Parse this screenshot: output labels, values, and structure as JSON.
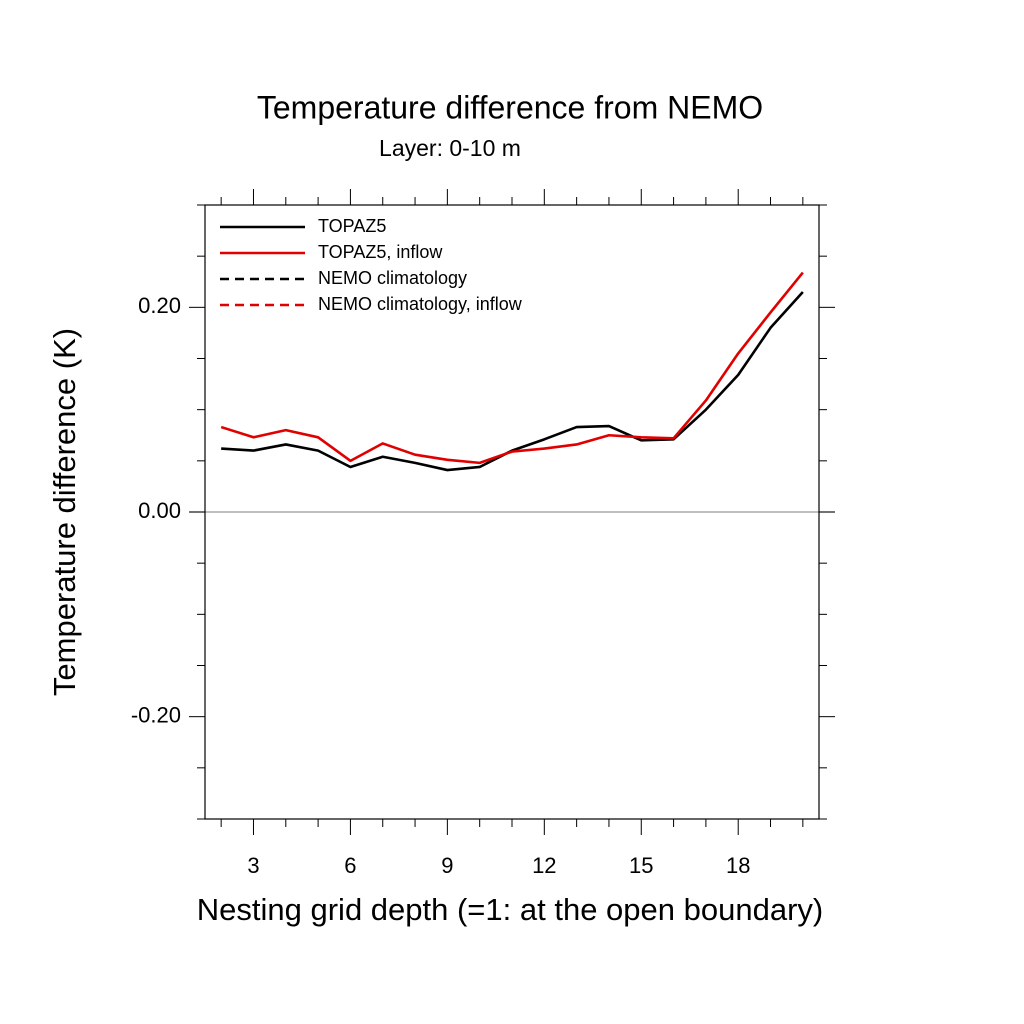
{
  "chart_data": {
    "type": "line",
    "title": "Temperature difference from NEMO",
    "subtitle": "Layer: 0-10 m",
    "x_label": "Nesting grid depth (=1: at the open boundary)",
    "y_label": "Temperature difference (K)",
    "x": [
      2,
      3,
      4,
      5,
      6,
      7,
      8,
      9,
      10,
      11,
      12,
      13,
      14,
      15,
      16,
      17,
      18,
      19,
      20
    ],
    "series": [
      {
        "name": "TOPAZ5",
        "color": "#000000",
        "dash": false,
        "values": [
          0.062,
          0.06,
          0.066,
          0.06,
          0.044,
          0.054,
          0.048,
          0.041,
          0.044,
          0.06,
          0.071,
          0.083,
          0.084,
          0.07,
          0.071,
          0.1,
          0.134,
          0.18,
          0.215
        ]
      },
      {
        "name": "TOPAZ5, inflow",
        "color": "#e00000",
        "dash": false,
        "values": [
          0.083,
          0.073,
          0.08,
          0.073,
          0.05,
          0.067,
          0.056,
          0.051,
          0.048,
          0.059,
          0.062,
          0.066,
          0.075,
          0.073,
          0.072,
          0.109,
          0.155,
          0.195,
          0.234
        ]
      },
      {
        "name": "NEMO climatology",
        "color": "#000000",
        "dash": true,
        "values": [
          null,
          null,
          null,
          null,
          null,
          null,
          null,
          null,
          null,
          null,
          null,
          null,
          null,
          null,
          null,
          null,
          null,
          null,
          null
        ]
      },
      {
        "name": "NEMO climatology, inflow",
        "color": "#e00000",
        "dash": true,
        "values": [
          null,
          null,
          null,
          null,
          null,
          null,
          null,
          null,
          null,
          null,
          null,
          null,
          null,
          null,
          null,
          null,
          null,
          null,
          null
        ]
      }
    ],
    "xlim": [
      1.5,
      20.5
    ],
    "ylim": [
      -0.3,
      0.3
    ],
    "xticks": [
      3,
      6,
      9,
      12,
      15,
      18
    ],
    "yticks": [
      {
        "value": -0.2,
        "label": "-0.20"
      },
      {
        "value": 0,
        "label": "0.00"
      },
      {
        "value": 0.2,
        "label": "0.20"
      }
    ],
    "xminor_ticks": [
      2,
      4,
      5,
      7,
      8,
      10,
      11,
      13,
      14,
      16,
      17,
      19,
      20
    ],
    "yminor_ticks": [
      -0.3,
      -0.25,
      -0.15,
      -0.1,
      -0.05,
      0.05,
      0.1,
      0.15,
      0.25,
      0.3
    ],
    "zero_line": true,
    "legend": "top-left"
  }
}
